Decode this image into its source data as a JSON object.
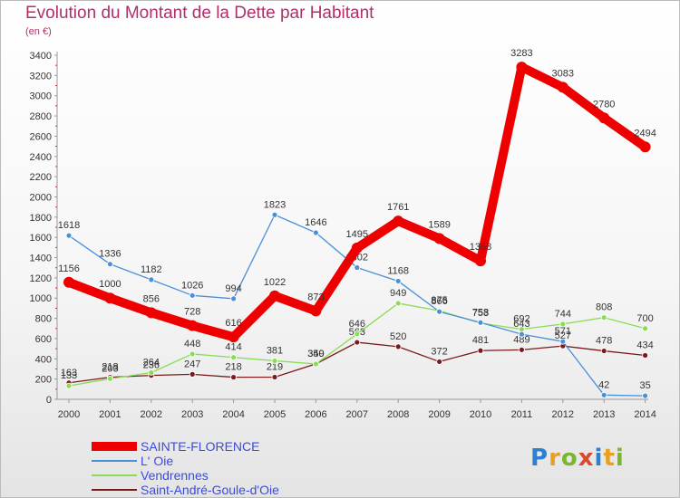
{
  "title": "Evolution du Montant de la Dette par Habitant",
  "subtitle": "(en €)",
  "logo_text": "Proxiti",
  "chart_data": {
    "type": "line",
    "title": "Evolution du Montant de la Dette par Habitant",
    "subtitle": "(en €)",
    "x": [
      "2000",
      "2001",
      "2002",
      "2003",
      "2004",
      "2005",
      "2006",
      "2007",
      "2008",
      "2009",
      "2010",
      "2011",
      "2012",
      "2013",
      "2014"
    ],
    "y_ticks": [
      "0",
      "200",
      "400",
      "600",
      "800",
      "1000",
      "1200",
      "1400",
      "1600",
      "1800",
      "2000",
      "2200",
      "2400",
      "2600",
      "2800",
      "3000",
      "3200",
      "3400"
    ],
    "ylim": [
      0,
      3400
    ],
    "grid": false,
    "legend_position": "bottom-left",
    "series": [
      {
        "name": "SAINTE-FLORENCE",
        "color": "#ee0000",
        "values": [
          1156,
          1000,
          856,
          728,
          616,
          1022,
          873,
          1495,
          1761,
          1589,
          1368,
          3283,
          3083,
          2780,
          2494
        ],
        "labels": [
          "1156",
          "1000",
          "856",
          "728",
          "616",
          "1022",
          "873",
          "1495",
          "1761",
          "1589",
          "1368",
          "3283",
          "3083",
          "2780",
          "2494"
        ]
      },
      {
        "name": "L' Oie",
        "color": "#4a90d9",
        "values": [
          1618,
          1336,
          1182,
          1026,
          994,
          1823,
          1646,
          1302,
          1168,
          866,
          758,
          643,
          571,
          42,
          35
        ],
        "labels": [
          "1618",
          "1336",
          "1182",
          "1026",
          "994",
          "1823",
          "1646",
          "1302",
          "1168",
          "866",
          "758",
          "643",
          "571",
          "42",
          "35"
        ]
      },
      {
        "name": "Vendrennes",
        "color": "#88dd55",
        "values": [
          133,
          203,
          264,
          448,
          414,
          381,
          349,
          646,
          949,
          875,
          753,
          692,
          744,
          808,
          700
        ],
        "labels": [
          "133",
          "203",
          "264",
          "448",
          "414",
          "381",
          "349",
          "646",
          "949",
          "875",
          "753",
          "692",
          "744",
          "808",
          "700"
        ]
      },
      {
        "name": "Saint-André-Goule-d'Oie",
        "color": "#7a1a1a",
        "values": [
          163,
          218,
          236,
          247,
          218,
          219,
          350,
          563,
          520,
          372,
          481,
          489,
          527,
          478,
          434
        ],
        "labels": [
          "163",
          "218",
          "236",
          "247",
          "218",
          "219",
          "350",
          "563",
          "520",
          "372",
          "481",
          "489",
          "527",
          "478",
          "434"
        ]
      }
    ]
  }
}
